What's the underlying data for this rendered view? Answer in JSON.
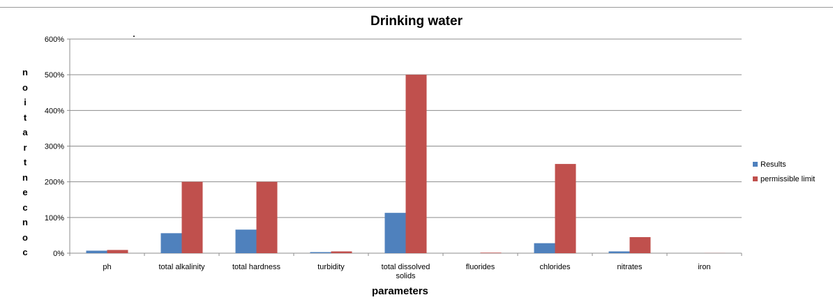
{
  "chart_data": {
    "type": "bar",
    "title": "Drinking water",
    "xlabel": "parameters",
    "ylabel": "concentration",
    "ylabel_chars": [
      "n",
      "o",
      "i",
      "t",
      "a",
      "r",
      "t",
      "n",
      "e",
      "c",
      "n",
      "o",
      "c"
    ],
    "ylim": [
      0,
      600
    ],
    "yticks": [
      "0%",
      "100%",
      "200%",
      "300%",
      "400%",
      "500%",
      "600%"
    ],
    "grid": true,
    "legend_position": "right",
    "categories": [
      "ph",
      "total alkalinity",
      "total hardness",
      "turbidity",
      "total dissolved solids",
      "fluorides",
      "chlorides",
      "nitrates",
      "iron"
    ],
    "category_lines": [
      [
        "ph"
      ],
      [
        "total alkalinity"
      ],
      [
        "total hardness"
      ],
      [
        "turbidity"
      ],
      [
        "total dissolved",
        "solids"
      ],
      [
        "fluorides"
      ],
      [
        "chlorides"
      ],
      [
        "nitrates"
      ],
      [
        "iron"
      ]
    ],
    "series": [
      {
        "name": "Results",
        "color": "#4f81bd",
        "values": [
          7,
          56,
          66,
          3,
          113,
          0,
          28,
          5,
          0
        ]
      },
      {
        "name": "permissible limit",
        "color": "#c0504d",
        "values": [
          9,
          200,
          200,
          5,
          500,
          1.5,
          250,
          45,
          0.3
        ]
      }
    ]
  }
}
